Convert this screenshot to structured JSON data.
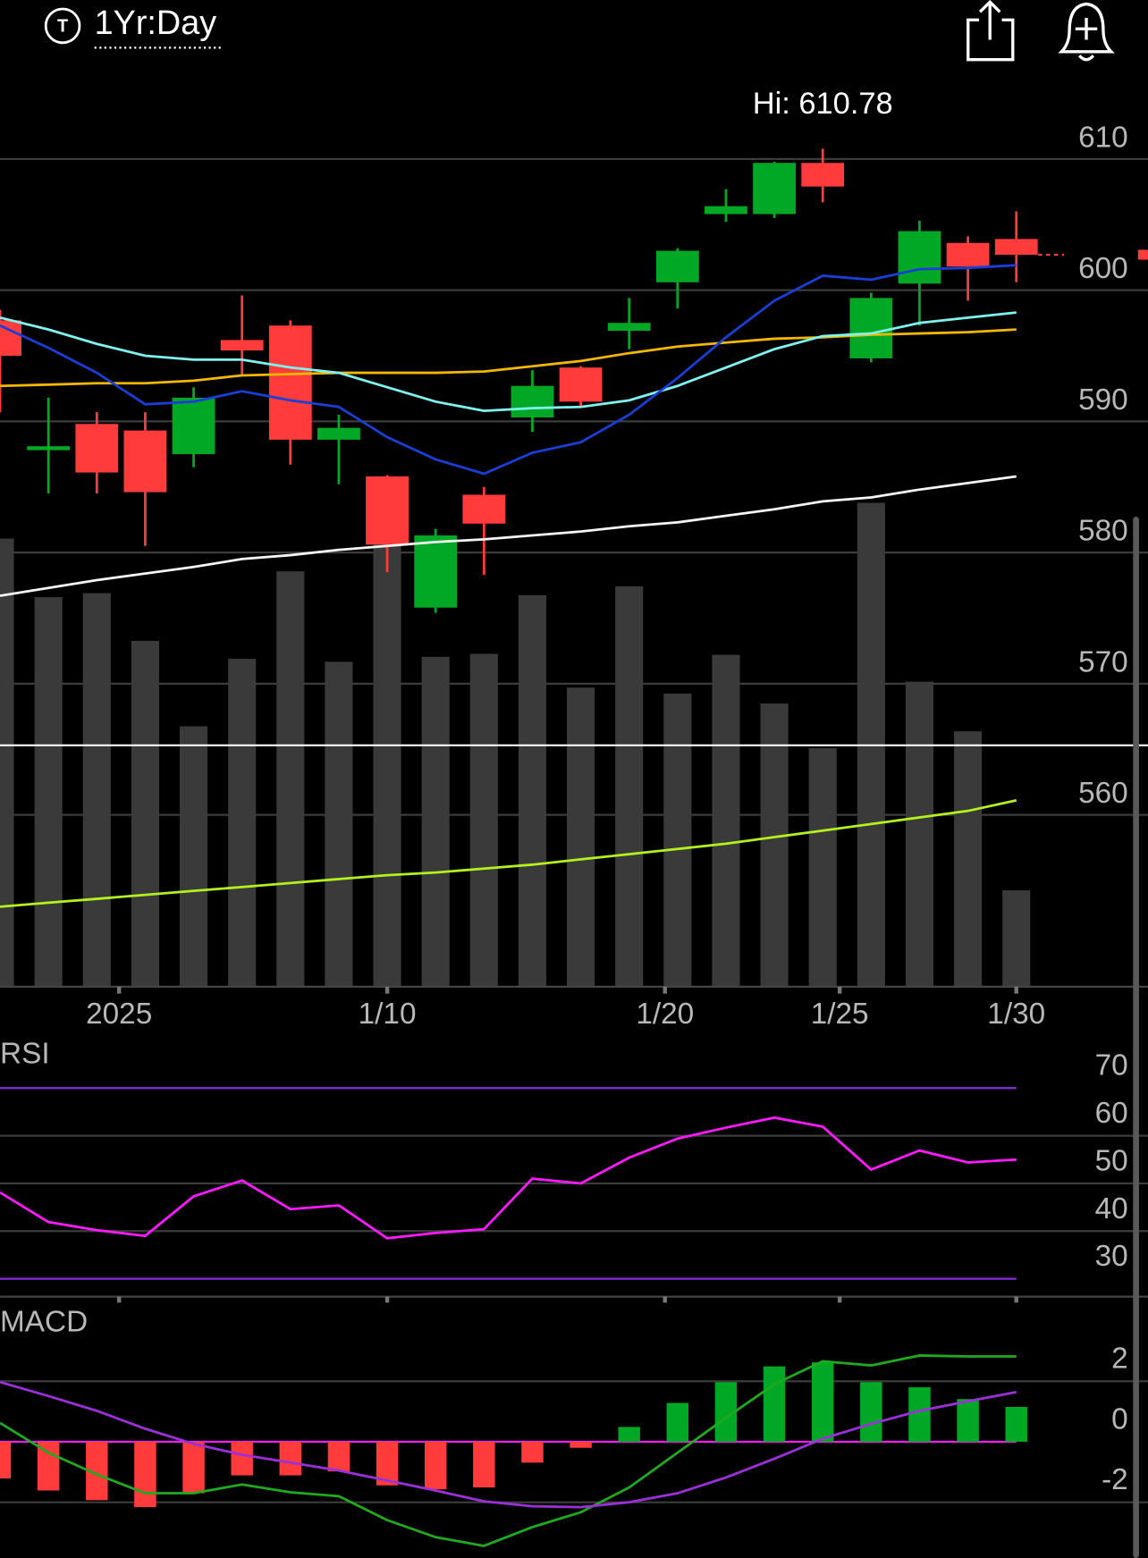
{
  "header": {
    "icon_label": "T",
    "timeframe": "1Yr:Day"
  },
  "chart_data": [
    {
      "type": "candlestick",
      "annotation": "Hi: 610.78",
      "xlim": [
        0,
        23.72
      ],
      "xticks": [
        {
          "value": 2.46,
          "label": "2025"
        },
        {
          "value": 8,
          "label": "1/10"
        },
        {
          "value": 13.74,
          "label": "1/20"
        },
        {
          "value": 17.35,
          "label": "1/25"
        },
        {
          "value": 21,
          "label": "1/30"
        }
      ],
      "ylim": [
        546.9,
        616.06
      ],
      "yticks": [
        610,
        600,
        590,
        580,
        570,
        560
      ],
      "grid": true,
      "up_color": "#00a825",
      "down_color": "#ff3b3b",
      "open": [
        597.7,
        587.8,
        589.8,
        589.3,
        587.5,
        596.2,
        597.3,
        588.6,
        585.8,
        575.8,
        584.4,
        590.3,
        594.1,
        596.9,
        600.6,
        605.8,
        605.8,
        609.7,
        594.8,
        600.5,
        603.6,
        603.9
      ],
      "high": [
        598.5,
        591.8,
        590.7,
        590.7,
        592.6,
        599.6,
        597.7,
        590.5,
        585.9,
        581.8,
        585.0,
        593.9,
        594.2,
        599.4,
        603.2,
        607.7,
        609.8,
        610.78,
        599.8,
        605.3,
        604.1,
        606.0
      ],
      "low": [
        590.7,
        584.5,
        584.5,
        580.5,
        586.5,
        593.5,
        586.7,
        585.2,
        578.5,
        575.4,
        578.3,
        589.2,
        591.1,
        595.5,
        598.6,
        605.2,
        605.5,
        606.7,
        594.5,
        597.3,
        599.2,
        600.6
      ],
      "close": [
        595.0,
        588.1,
        586.1,
        584.6,
        591.8,
        595.4,
        588.6,
        589.5,
        580.6,
        581.3,
        582.2,
        592.7,
        591.5,
        597.5,
        603.0,
        606.4,
        609.7,
        607.9,
        599.4,
        604.5,
        601.8,
        602.7
      ],
      "volume": {
        "color": "#3a3a3a",
        "ylim": [
          0,
          913
        ],
        "values": [
          451,
          392,
          396,
          348,
          262,
          330,
          418,
          327,
          445,
          332,
          335,
          394,
          301,
          403,
          295,
          334,
          285,
          240,
          487,
          307,
          257,
          97
        ]
      },
      "reference_line": {
        "value": 565.3,
        "color": "#ffffff"
      },
      "series": [
        {
          "color": "#f5f5f5",
          "values": [
            576.7,
            577.3,
            577.9,
            578.4,
            578.9,
            579.5,
            579.8,
            580.2,
            580.5,
            580.8,
            581.0,
            581.3,
            581.6,
            582.0,
            582.3,
            582.8,
            583.3,
            583.9,
            584.2,
            584.8,
            585.3,
            585.8
          ]
        },
        {
          "color": "#b4f01e",
          "values": [
            553.0,
            553.3,
            553.6,
            553.9,
            554.2,
            554.5,
            554.8,
            555.1,
            555.4,
            555.6,
            555.9,
            556.2,
            556.6,
            557.0,
            557.4,
            557.8,
            558.3,
            558.8,
            559.3,
            559.8,
            560.3,
            561.1
          ]
        },
        {
          "color": "#f5b800",
          "values": [
            592.7,
            592.8,
            592.9,
            592.9,
            593.1,
            593.5,
            593.6,
            593.7,
            593.7,
            593.7,
            593.8,
            594.2,
            594.6,
            595.2,
            595.7,
            596.0,
            596.3,
            596.4,
            596.6,
            596.7,
            596.8,
            597.0
          ]
        },
        {
          "color": "#7ff3f0",
          "values": [
            597.9,
            597.0,
            595.9,
            595.0,
            594.7,
            594.7,
            594.1,
            593.7,
            592.6,
            591.5,
            590.8,
            591.0,
            591.1,
            591.6,
            592.7,
            594.1,
            595.5,
            596.5,
            596.7,
            597.5,
            597.9,
            598.3
          ]
        },
        {
          "color": "#1a3fd6",
          "values": [
            597.3,
            595.6,
            593.7,
            591.3,
            591.5,
            592.3,
            591.6,
            591.1,
            588.8,
            587.1,
            586.0,
            587.6,
            588.4,
            590.5,
            593.3,
            596.4,
            599.2,
            601.1,
            600.8,
            601.6,
            601.7,
            601.9
          ]
        }
      ]
    },
    {
      "type": "line",
      "label": "RSI",
      "xlim": [
        0,
        23.72
      ],
      "ylim": [
        26.25,
        79.8
      ],
      "yticks": [
        70,
        60,
        50,
        40,
        30
      ],
      "levels": [
        70,
        30
      ],
      "level_color": "#8a2be2",
      "color": "#ff1aff",
      "values": [
        48.1,
        41.9,
        40.2,
        39.0,
        47.3,
        50.6,
        44.6,
        45.4,
        38.5,
        39.6,
        40.4,
        51.0,
        50.0,
        55.4,
        59.4,
        61.7,
        63.8,
        61.9,
        52.9,
        56.9,
        54.4,
        55.0
      ]
    },
    {
      "type": "macd",
      "label": "MACD",
      "xlim": [
        0,
        23.72
      ],
      "ylim": [
        -3.84,
        4.3
      ],
      "yticks": [
        2,
        0,
        -2
      ],
      "zero_color": "#ff1aff",
      "up_color": "#00a825",
      "down_color": "#ff3b3b",
      "histogram": [
        -1.21,
        -1.61,
        -1.93,
        -2.16,
        -1.7,
        -1.11,
        -1.11,
        -0.98,
        -1.44,
        -1.57,
        -1.51,
        -0.69,
        -0.2,
        0.49,
        1.28,
        1.97,
        2.49,
        2.62,
        1.97,
        1.8,
        1.41,
        1.15
      ],
      "series": [
        {
          "color": "#1faa1f",
          "values": [
            0.62,
            -0.36,
            -1.08,
            -1.7,
            -1.7,
            -1.41,
            -1.67,
            -1.8,
            -2.59,
            -3.15,
            -3.44,
            -2.82,
            -2.33,
            -1.51,
            -0.36,
            0.79,
            1.9,
            2.66,
            2.52,
            2.85,
            2.82,
            2.82
          ]
        },
        {
          "color": "#9b30d9",
          "values": [
            1.97,
            1.51,
            1.02,
            0.43,
            -0.07,
            -0.43,
            -0.69,
            -0.95,
            -1.28,
            -1.61,
            -1.97,
            -2.13,
            -2.16,
            -2.0,
            -1.7,
            -1.18,
            -0.56,
            0.1,
            0.59,
            1.02,
            1.34,
            1.64
          ]
        }
      ]
    }
  ]
}
